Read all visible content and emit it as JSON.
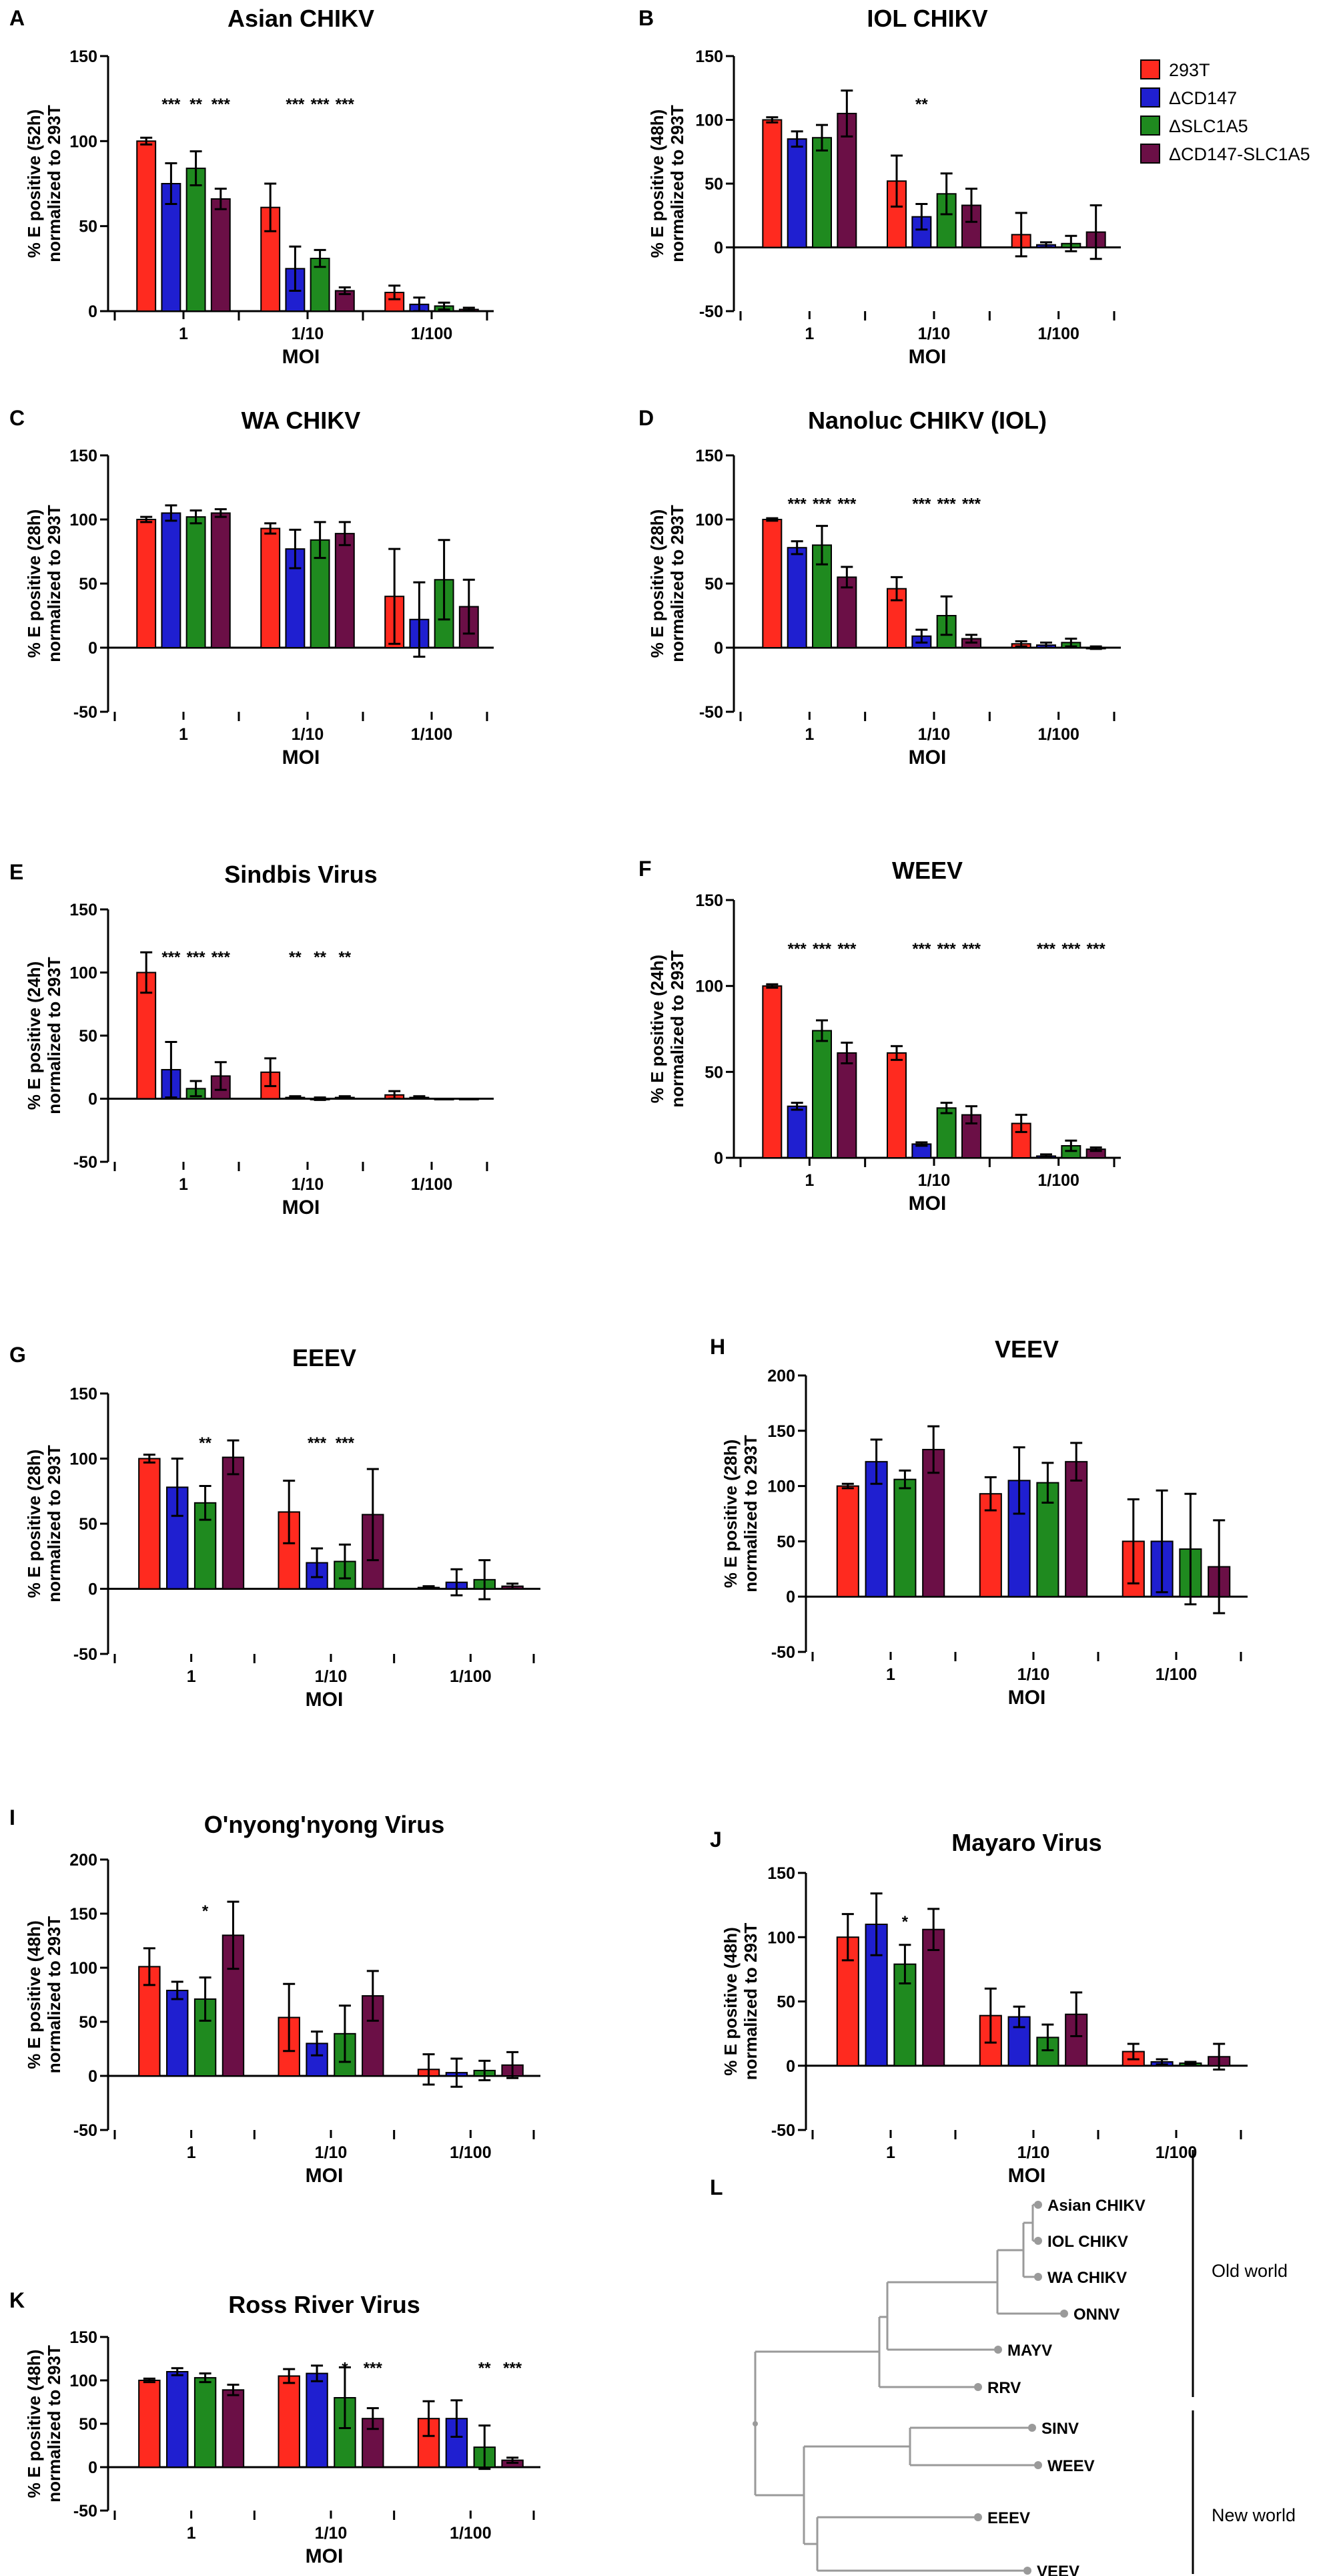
{
  "figure": {
    "tree_letter": "L",
    "tree_leaves": [
      "Asian CHIKV",
      "IOL CHIKV",
      "WA CHIKV",
      "ONNV",
      "MAYV",
      "RRV",
      "SINV",
      "WEEV",
      "EEEV",
      "VEEV"
    ],
    "tree_groups": [
      "Old world",
      "New world"
    ]
  },
  "legend": {
    "entries": [
      "293T",
      "ΔCD147",
      "ΔSLC1A5",
      "ΔCD147-SLC1A5"
    ],
    "colors": [
      "#ff2a1f",
      "#1f1fd0",
      "#1f8a1f",
      "#6b0f46"
    ]
  },
  "chart_data": [
    {
      "letter": "A",
      "type": "bar",
      "title": "Asian CHIKV",
      "ylabel": [
        "% E positive (52h)",
        "normalized to 293T"
      ],
      "xlabel": "MOI",
      "categories": [
        "1",
        "1/10",
        "1/100"
      ],
      "ylim": [
        0,
        150
      ],
      "yticks": [
        0,
        50,
        100,
        150
      ],
      "series": [
        {
          "name": "293T",
          "values": [
            100,
            61,
            11
          ],
          "errors": [
            2,
            14,
            4
          ]
        },
        {
          "name": "ΔCD147",
          "values": [
            75,
            25,
            4
          ],
          "errors": [
            12,
            13,
            4
          ]
        },
        {
          "name": "ΔSLC1A5",
          "values": [
            84,
            31,
            3
          ],
          "errors": [
            10,
            5,
            2
          ]
        },
        {
          "name": "ΔCD147-SLC1A5",
          "values": [
            66,
            12,
            1
          ],
          "errors": [
            6,
            2,
            1
          ]
        }
      ],
      "significance": [
        [
          "***",
          "**",
          "***"
        ],
        [
          "***",
          "***",
          "***"
        ],
        [
          "",
          "",
          ""
        ]
      ]
    },
    {
      "letter": "B",
      "type": "bar",
      "title": "IOL CHIKV",
      "ylabel": [
        "% E positive (48h)",
        "normalized to 293T"
      ],
      "xlabel": "MOI",
      "categories": [
        "1",
        "1/10",
        "1/100"
      ],
      "ylim": [
        -50,
        150
      ],
      "yticks": [
        -50,
        0,
        50,
        100,
        150
      ],
      "series": [
        {
          "name": "293T",
          "values": [
            100,
            52,
            10
          ],
          "errors": [
            2,
            20,
            17
          ]
        },
        {
          "name": "ΔCD147",
          "values": [
            85,
            24,
            2
          ],
          "errors": [
            6,
            10,
            2
          ]
        },
        {
          "name": "ΔSLC1A5",
          "values": [
            86,
            42,
            3
          ],
          "errors": [
            10,
            16,
            6
          ]
        },
        {
          "name": "ΔCD147-SLC1A5",
          "values": [
            105,
            33,
            12
          ],
          "errors": [
            18,
            13,
            21
          ]
        }
      ],
      "significance": [
        [
          "",
          "",
          ""
        ],
        [
          "**",
          "",
          ""
        ],
        [
          "",
          "",
          ""
        ]
      ]
    },
    {
      "letter": "C",
      "type": "bar",
      "title": "WA CHIKV",
      "ylabel": [
        "% E positive (28h)",
        "normalized to 293T"
      ],
      "xlabel": "MOI",
      "categories": [
        "1",
        "1/10",
        "1/100"
      ],
      "ylim": [
        -50,
        150
      ],
      "yticks": [
        -50,
        0,
        50,
        100,
        150
      ],
      "series": [
        {
          "name": "293T",
          "values": [
            100,
            93,
            40
          ],
          "errors": [
            2,
            4,
            37
          ]
        },
        {
          "name": "ΔCD147",
          "values": [
            105,
            77,
            22
          ],
          "errors": [
            6,
            15,
            29
          ]
        },
        {
          "name": "ΔSLC1A5",
          "values": [
            102,
            84,
            53
          ],
          "errors": [
            5,
            14,
            31
          ]
        },
        {
          "name": "ΔCD147-SLC1A5",
          "values": [
            105,
            89,
            32
          ],
          "errors": [
            3,
            9,
            21
          ]
        }
      ],
      "significance": [
        [
          "",
          "",
          ""
        ],
        [
          "",
          "",
          ""
        ],
        [
          "",
          "",
          ""
        ]
      ]
    },
    {
      "letter": "D",
      "type": "bar",
      "title": "Nanoluc CHIKV (IOL)",
      "ylabel": [
        "% E positive (28h)",
        "normalized to 293T"
      ],
      "xlabel": "MOI",
      "categories": [
        "1",
        "1/10",
        "1/100"
      ],
      "ylim": [
        -50,
        150
      ],
      "yticks": [
        -50,
        0,
        50,
        100,
        150
      ],
      "series": [
        {
          "name": "293T",
          "values": [
            100,
            46,
            3
          ],
          "errors": [
            1,
            9,
            2
          ]
        },
        {
          "name": "ΔCD147",
          "values": [
            78,
            9,
            2
          ],
          "errors": [
            5,
            5,
            2
          ]
        },
        {
          "name": "ΔSLC1A5",
          "values": [
            80,
            25,
            4
          ],
          "errors": [
            15,
            15,
            3
          ]
        },
        {
          "name": "ΔCD147-SLC1A5",
          "values": [
            55,
            7,
            0
          ],
          "errors": [
            8,
            3,
            1
          ]
        }
      ],
      "significance": [
        [
          "***",
          "***",
          "***"
        ],
        [
          "***",
          "***",
          "***"
        ],
        [
          "",
          "",
          ""
        ]
      ]
    },
    {
      "letter": "E",
      "type": "bar",
      "title": "Sindbis Virus",
      "ylabel": [
        "% E positive (24h)",
        "normalized to 293T"
      ],
      "xlabel": "MOI",
      "categories": [
        "1",
        "1/10",
        "1/100"
      ],
      "ylim": [
        -50,
        150
      ],
      "yticks": [
        -50,
        0,
        50,
        100,
        150
      ],
      "series": [
        {
          "name": "293T",
          "values": [
            100,
            21,
            3
          ],
          "errors": [
            16,
            11,
            3
          ]
        },
        {
          "name": "ΔCD147",
          "values": [
            23,
            1,
            1
          ],
          "errors": [
            22,
            1,
            1
          ]
        },
        {
          "name": "ΔSLC1A5",
          "values": [
            8,
            0,
            0
          ],
          "errors": [
            6,
            1,
            0
          ]
        },
        {
          "name": "ΔCD147-SLC1A5",
          "values": [
            18,
            1,
            0
          ],
          "errors": [
            11,
            1,
            0
          ]
        }
      ],
      "significance": [
        [
          "***",
          "***",
          "***"
        ],
        [
          "**",
          "**",
          "**"
        ],
        [
          "",
          "",
          ""
        ]
      ]
    },
    {
      "letter": "F",
      "type": "bar",
      "title": "WEEV",
      "ylabel": [
        "% E positive (24h)",
        "normalized to 293T"
      ],
      "xlabel": "MOI",
      "categories": [
        "1",
        "1/10",
        "1/100"
      ],
      "ylim": [
        0,
        150
      ],
      "yticks": [
        0,
        50,
        100,
        150
      ],
      "series": [
        {
          "name": "293T",
          "values": [
            100,
            61,
            20
          ],
          "errors": [
            1,
            4,
            5
          ]
        },
        {
          "name": "ΔCD147",
          "values": [
            30,
            8,
            1
          ],
          "errors": [
            2,
            1,
            1
          ]
        },
        {
          "name": "ΔSLC1A5",
          "values": [
            74,
            29,
            7
          ],
          "errors": [
            6,
            3,
            3
          ]
        },
        {
          "name": "ΔCD147-SLC1A5",
          "values": [
            61,
            25,
            5
          ],
          "errors": [
            6,
            5,
            1
          ]
        }
      ],
      "significance": [
        [
          "***",
          "***",
          "***"
        ],
        [
          "***",
          "***",
          "***"
        ],
        [
          "***",
          "***",
          "***"
        ]
      ]
    },
    {
      "letter": "G",
      "type": "bar",
      "title": "EEEV",
      "ylabel": [
        "% E positive (28h)",
        "normalized to 293T"
      ],
      "xlabel": "MOI",
      "categories": [
        "1",
        "1/10",
        "1/100"
      ],
      "ylim": [
        -50,
        150
      ],
      "yticks": [
        -50,
        0,
        50,
        100,
        150
      ],
      "series": [
        {
          "name": "293T",
          "values": [
            100,
            59,
            1
          ],
          "errors": [
            3,
            24,
            1
          ]
        },
        {
          "name": "ΔCD147",
          "values": [
            78,
            20,
            5
          ],
          "errors": [
            22,
            11,
            10
          ]
        },
        {
          "name": "ΔSLC1A5",
          "values": [
            66,
            21,
            7
          ],
          "errors": [
            13,
            13,
            15
          ]
        },
        {
          "name": "ΔCD147-SLC1A5",
          "values": [
            101,
            57,
            2
          ],
          "errors": [
            13,
            35,
            2
          ]
        }
      ],
      "significance": [
        [
          "",
          "**",
          ""
        ],
        [
          "***",
          "***",
          ""
        ],
        [
          "",
          "",
          ""
        ]
      ]
    },
    {
      "letter": "H",
      "type": "bar",
      "title": "VEEV",
      "ylabel": [
        "% E positive (28h)",
        "normalized to 293T"
      ],
      "xlabel": "MOI",
      "categories": [
        "1",
        "1/10",
        "1/100"
      ],
      "ylim": [
        -50,
        200
      ],
      "yticks": [
        -50,
        0,
        50,
        100,
        150,
        200
      ],
      "series": [
        {
          "name": "293T",
          "values": [
            100,
            93,
            50
          ],
          "errors": [
            2,
            15,
            38
          ]
        },
        {
          "name": "ΔCD147",
          "values": [
            122,
            105,
            50
          ],
          "errors": [
            20,
            30,
            46
          ]
        },
        {
          "name": "ΔSLC1A5",
          "values": [
            106,
            103,
            43
          ],
          "errors": [
            8,
            18,
            50
          ]
        },
        {
          "name": "ΔCD147-SLC1A5",
          "values": [
            133,
            122,
            27
          ],
          "errors": [
            21,
            17,
            42
          ]
        }
      ],
      "significance": [
        [
          "",
          "",
          ""
        ],
        [
          "",
          "",
          ""
        ],
        [
          "",
          "",
          ""
        ]
      ]
    },
    {
      "letter": "I",
      "type": "bar",
      "title": "O'nyong'nyong Virus",
      "ylabel": [
        "% E positive (48h)",
        "normalized to 293T"
      ],
      "xlabel": "MOI",
      "categories": [
        "1",
        "1/10",
        "1/100"
      ],
      "ylim": [
        -50,
        200
      ],
      "yticks": [
        -50,
        0,
        50,
        100,
        150,
        200
      ],
      "series": [
        {
          "name": "293T",
          "values": [
            101,
            54,
            6
          ],
          "errors": [
            17,
            31,
            14
          ]
        },
        {
          "name": "ΔCD147",
          "values": [
            79,
            30,
            3
          ],
          "errors": [
            8,
            11,
            13
          ]
        },
        {
          "name": "ΔSLC1A5",
          "values": [
            71,
            39,
            5
          ],
          "errors": [
            20,
            26,
            9
          ]
        },
        {
          "name": "ΔCD147-SLC1A5",
          "values": [
            130,
            74,
            10
          ],
          "errors": [
            31,
            23,
            12
          ]
        }
      ],
      "significance": [
        [
          "",
          "*",
          ""
        ],
        [
          "",
          "",
          ""
        ],
        [
          "",
          "",
          ""
        ]
      ]
    },
    {
      "letter": "J",
      "type": "bar",
      "title": "Mayaro Virus",
      "ylabel": [
        "% E positive (48h)",
        "normalized to 293T"
      ],
      "xlabel": "MOI",
      "categories": [
        "1",
        "1/10",
        "1/100"
      ],
      "ylim": [
        -50,
        150
      ],
      "yticks": [
        -50,
        0,
        50,
        100,
        150
      ],
      "series": [
        {
          "name": "293T",
          "values": [
            100,
            39,
            11
          ],
          "errors": [
            18,
            21,
            6
          ]
        },
        {
          "name": "ΔCD147",
          "values": [
            110,
            38,
            3
          ],
          "errors": [
            24,
            8,
            2
          ]
        },
        {
          "name": "ΔSLC1A5",
          "values": [
            79,
            22,
            2
          ],
          "errors": [
            15,
            10,
            1
          ]
        },
        {
          "name": "ΔCD147-SLC1A5",
          "values": [
            106,
            40,
            7
          ],
          "errors": [
            16,
            17,
            10
          ]
        }
      ],
      "significance": [
        [
          "",
          "*",
          ""
        ],
        [
          "",
          "",
          ""
        ],
        [
          "",
          "",
          ""
        ]
      ]
    },
    {
      "letter": "K",
      "type": "bar",
      "title": "Ross River Virus",
      "ylabel": [
        "% E positive (48h)",
        "normalized to 293T"
      ],
      "xlabel": "MOI",
      "categories": [
        "1",
        "1/10",
        "1/100"
      ],
      "ylim": [
        -50,
        150
      ],
      "yticks": [
        -50,
        0,
        50,
        100,
        150
      ],
      "series": [
        {
          "name": "293T",
          "values": [
            100,
            105,
            56
          ],
          "errors": [
            2,
            8,
            20
          ]
        },
        {
          "name": "ΔCD147",
          "values": [
            110,
            108,
            56
          ],
          "errors": [
            4,
            9,
            21
          ]
        },
        {
          "name": "ΔSLC1A5",
          "values": [
            103,
            80,
            23
          ],
          "errors": [
            5,
            35,
            25
          ]
        },
        {
          "name": "ΔCD147-SLC1A5",
          "values": [
            89,
            56,
            8
          ],
          "errors": [
            6,
            12,
            3
          ]
        }
      ],
      "significance": [
        [
          "",
          "",
          ""
        ],
        [
          "",
          "*",
          "***"
        ],
        [
          "",
          "**",
          "***"
        ]
      ]
    }
  ]
}
